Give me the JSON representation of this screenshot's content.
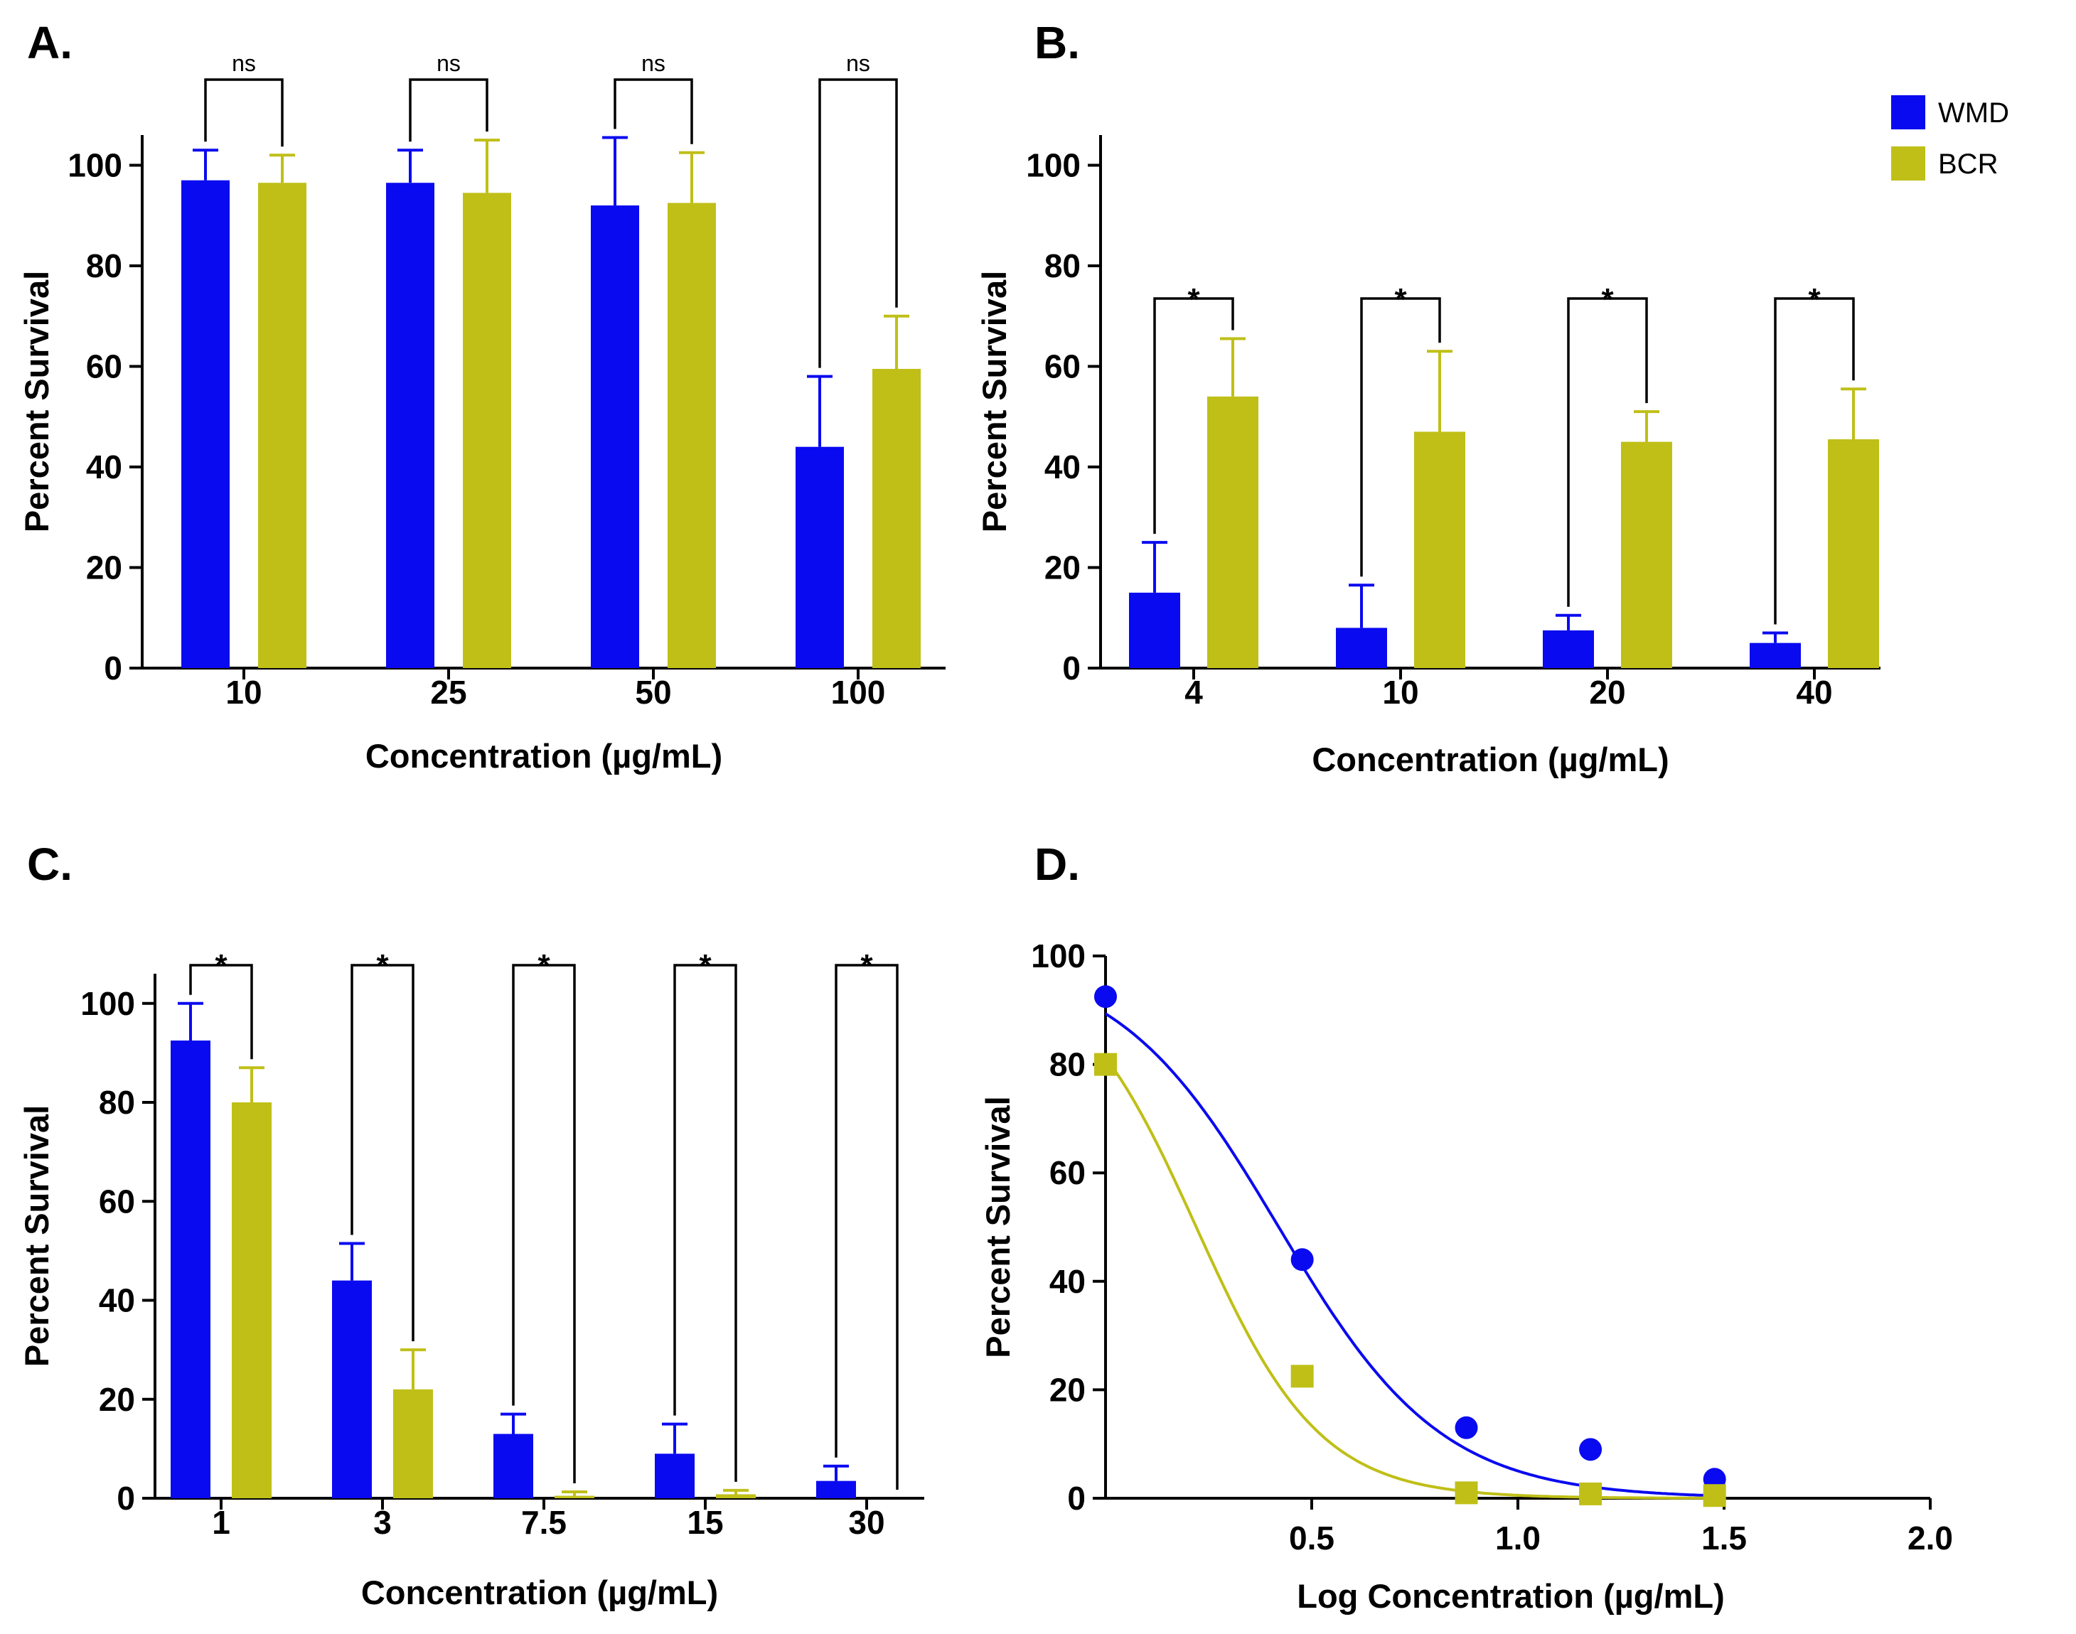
{
  "legend": {
    "entries": [
      {
        "name": "WMD",
        "color": "#0a0af0"
      },
      {
        "name": "BCR",
        "color": "#bfbf18"
      }
    ],
    "placement": "top-right"
  },
  "chart_data": [
    {
      "panel": "A.",
      "type": "bar",
      "categories": [
        "10",
        "25",
        "50",
        "100"
      ],
      "series": [
        {
          "name": "WMD",
          "values": [
            97,
            96.5,
            92,
            44
          ],
          "errors": [
            6,
            6.5,
            13.5,
            14
          ]
        },
        {
          "name": "BCR",
          "values": [
            96.5,
            94.5,
            92.5,
            59.5
          ],
          "errors": [
            5.5,
            10.5,
            10,
            10.5
          ]
        }
      ],
      "significance": [
        "ns",
        "ns",
        "ns",
        "ns"
      ],
      "xlabel": "Concentration (µg/mL)",
      "ylabel": "Percent Survival",
      "ylim": [
        0,
        106
      ],
      "yticks": [
        0,
        20,
        40,
        60,
        80,
        100
      ]
    },
    {
      "panel": "B.",
      "type": "bar",
      "categories": [
        "4",
        "10",
        "20",
        "40"
      ],
      "series": [
        {
          "name": "WMD",
          "values": [
            15,
            8,
            7.5,
            5
          ],
          "errors": [
            10,
            8.5,
            3,
            2
          ]
        },
        {
          "name": "BCR",
          "values": [
            54,
            47,
            45,
            45.5
          ],
          "errors": [
            11.5,
            16,
            6,
            10
          ]
        }
      ],
      "significance": [
        "*",
        "*",
        "*",
        "*"
      ],
      "xlabel": "Concentration (µg/mL)",
      "ylabel": "Percent Survival",
      "ylim": [
        0,
        106
      ],
      "yticks": [
        0,
        20,
        40,
        60,
        80,
        100
      ]
    },
    {
      "panel": "C.",
      "type": "bar",
      "categories": [
        "1",
        "3",
        "7.5",
        "15",
        "30"
      ],
      "series": [
        {
          "name": "WMD",
          "values": [
            92.5,
            44,
            13,
            9,
            3.5
          ],
          "errors": [
            7.5,
            7.5,
            4,
            6,
            3
          ]
        },
        {
          "name": "BCR",
          "values": [
            80,
            22,
            0.5,
            0.8,
            0
          ],
          "errors": [
            7,
            8,
            0.8,
            0.8,
            0
          ]
        }
      ],
      "significance": [
        "*",
        "*",
        "*",
        "*",
        "*"
      ],
      "xlabel": "Concentration (µg/mL)",
      "ylabel": "Percent Survival",
      "ylim": [
        0,
        106
      ],
      "yticks": [
        0,
        20,
        40,
        60,
        80,
        100
      ]
    },
    {
      "panel": "D.",
      "type": "scatter",
      "series": [
        {
          "name": "WMD",
          "marker": "circle",
          "x": [
            0,
            0.477,
            0.875,
            1.176,
            1.477
          ],
          "y": [
            92.5,
            44,
            13,
            9,
            3.5
          ]
        },
        {
          "name": "BCR",
          "marker": "square",
          "x": [
            0,
            0.477,
            0.875,
            1.176,
            1.477
          ],
          "y": [
            80,
            22.5,
            1,
            0.8,
            0.5
          ]
        }
      ],
      "fits": [
        {
          "name": "WMD",
          "top": 100,
          "bottom": 0,
          "log_ic50": 0.42,
          "hill": -2.2
        },
        {
          "name": "BCR",
          "top": 100,
          "bottom": 0,
          "log_ic50": 0.22,
          "hill": -2.9
        }
      ],
      "xlabel": "Log Concentration (µg/mL)",
      "ylabel": "Percent Survival",
      "xlim": [
        0,
        2.0
      ],
      "ylim": [
        0,
        100
      ],
      "xticks": [
        "0.5",
        "1.0",
        "1.5",
        "2.0"
      ],
      "yticks": [
        0,
        20,
        40,
        60,
        80,
        100
      ]
    }
  ]
}
